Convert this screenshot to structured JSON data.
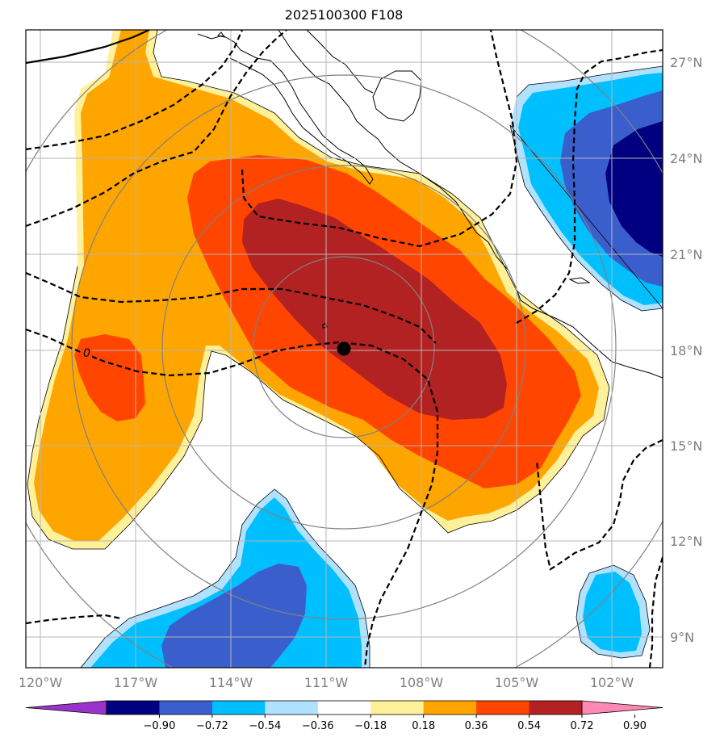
{
  "title": "2025100300 F108",
  "lat_labels": [
    "27°N",
    "24°N",
    "21°N",
    "18°N",
    "15°N",
    "12°N",
    "9°N"
  ],
  "lon_labels": [
    "120°W",
    "117°W",
    "114°W",
    "111°W",
    "108°W",
    "105°W",
    "102°W"
  ],
  "contour_label": "0",
  "colorbar": {
    "colors": [
      "#9933cc",
      "#000080",
      "#3a5fcd",
      "#00bfff",
      "#b0e2ff",
      "#ffffff",
      "#fff09a",
      "#ffa500",
      "#ff4500",
      "#b22222",
      "#ff88b4"
    ],
    "tick_labels": [
      "−0.90",
      "−0.72",
      "−0.54",
      "−0.36",
      "−0.18",
      "0.18",
      "0.36",
      "0.54",
      "0.72",
      "0.90"
    ]
  },
  "storm_center": {
    "lon": "110.4°W",
    "lat": "18.0°N"
  }
}
